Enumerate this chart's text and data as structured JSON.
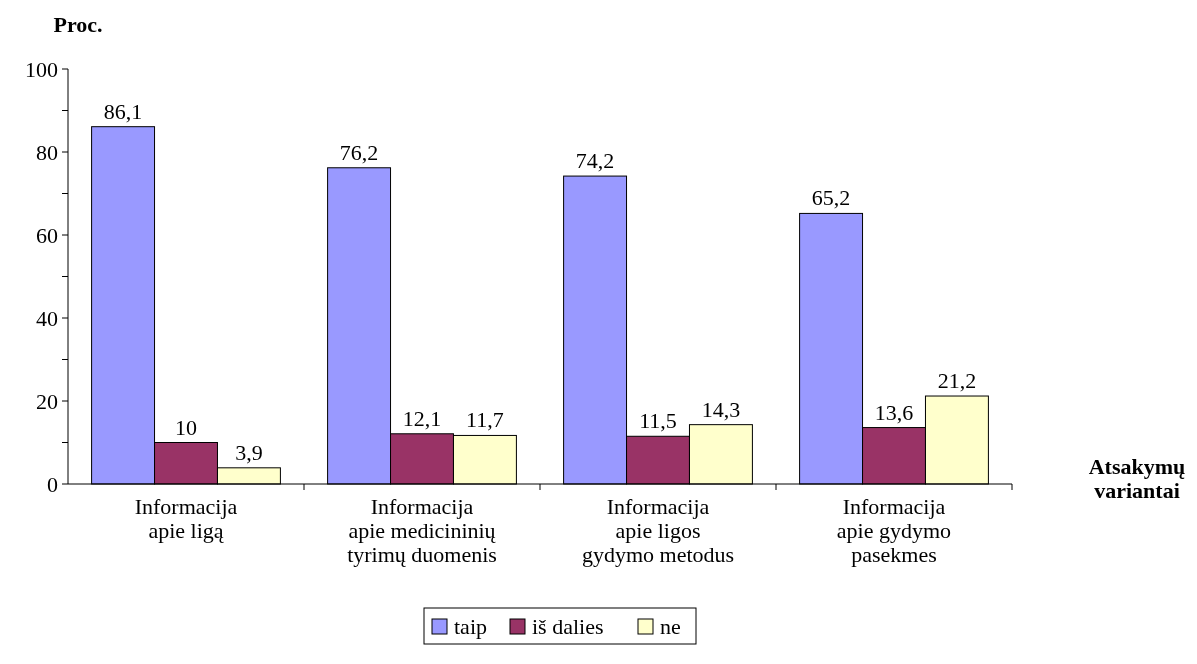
{
  "chart_data": {
    "type": "bar",
    "ylabel": "Proc.",
    "xlabel": "Atsakymų variantai",
    "categories": [
      "Informacija apie ligą",
      "Informacija apie medicininių tyrimų duomenis",
      "Informacija apie ligos gydymo metodus",
      "Informacija apie gydymo pasekmes"
    ],
    "series": [
      {
        "name": "taip",
        "color": "#9999ff",
        "values": [
          86.1,
          76.2,
          74.2,
          65.2
        ],
        "value_labels": [
          "86,1",
          "76,2",
          "74,2",
          "65,2"
        ]
      },
      {
        "name": "iš dalies",
        "color": "#993366",
        "values": [
          10,
          12.1,
          11.5,
          13.6
        ],
        "value_labels": [
          "10",
          "12,1",
          "11,5",
          "13,6"
        ]
      },
      {
        "name": "ne",
        "color": "#ffffcc",
        "values": [
          3.9,
          11.7,
          14.3,
          21.2
        ],
        "value_labels": [
          "3,9",
          "11,7",
          "14,3",
          "21,2"
        ]
      }
    ],
    "ylim": [
      0,
      100
    ],
    "yticks": [
      0,
      {
        "value": 10,
        "label": null
      },
      20,
      {
        "value": 30,
        "label": null
      },
      40,
      {
        "value": 50,
        "label": null
      },
      60,
      {
        "value": 70,
        "label": null
      },
      80,
      {
        "value": 90,
        "label": null
      },
      100
    ],
    "grid": false,
    "legend": "bottom"
  }
}
